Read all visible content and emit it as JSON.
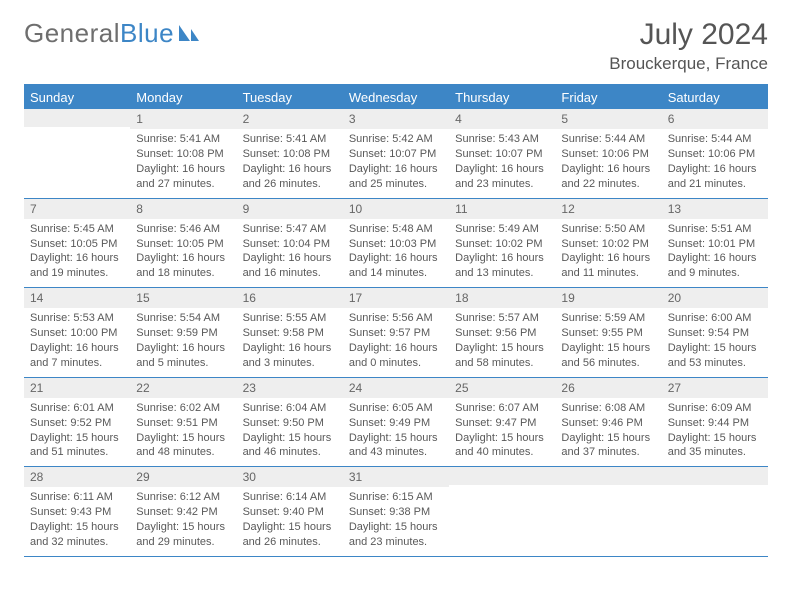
{
  "logo": {
    "text1": "General",
    "text2": "Blue"
  },
  "title": "July 2024",
  "location": "Brouckerque, France",
  "colors": {
    "brand": "#3d86c6",
    "text": "#555555",
    "headerBg": "#3d86c6",
    "headerText": "#ffffff",
    "daynumBg": "#eeeeee",
    "cellText": "#595959"
  },
  "dayNames": [
    "Sunday",
    "Monday",
    "Tuesday",
    "Wednesday",
    "Thursday",
    "Friday",
    "Saturday"
  ],
  "weeks": [
    [
      {
        "day": "",
        "sunrise": "",
        "sunset": "",
        "daylight1": "",
        "daylight2": ""
      },
      {
        "day": "1",
        "sunrise": "Sunrise: 5:41 AM",
        "sunset": "Sunset: 10:08 PM",
        "daylight1": "Daylight: 16 hours",
        "daylight2": "and 27 minutes."
      },
      {
        "day": "2",
        "sunrise": "Sunrise: 5:41 AM",
        "sunset": "Sunset: 10:08 PM",
        "daylight1": "Daylight: 16 hours",
        "daylight2": "and 26 minutes."
      },
      {
        "day": "3",
        "sunrise": "Sunrise: 5:42 AM",
        "sunset": "Sunset: 10:07 PM",
        "daylight1": "Daylight: 16 hours",
        "daylight2": "and 25 minutes."
      },
      {
        "day": "4",
        "sunrise": "Sunrise: 5:43 AM",
        "sunset": "Sunset: 10:07 PM",
        "daylight1": "Daylight: 16 hours",
        "daylight2": "and 23 minutes."
      },
      {
        "day": "5",
        "sunrise": "Sunrise: 5:44 AM",
        "sunset": "Sunset: 10:06 PM",
        "daylight1": "Daylight: 16 hours",
        "daylight2": "and 22 minutes."
      },
      {
        "day": "6",
        "sunrise": "Sunrise: 5:44 AM",
        "sunset": "Sunset: 10:06 PM",
        "daylight1": "Daylight: 16 hours",
        "daylight2": "and 21 minutes."
      }
    ],
    [
      {
        "day": "7",
        "sunrise": "Sunrise: 5:45 AM",
        "sunset": "Sunset: 10:05 PM",
        "daylight1": "Daylight: 16 hours",
        "daylight2": "and 19 minutes."
      },
      {
        "day": "8",
        "sunrise": "Sunrise: 5:46 AM",
        "sunset": "Sunset: 10:05 PM",
        "daylight1": "Daylight: 16 hours",
        "daylight2": "and 18 minutes."
      },
      {
        "day": "9",
        "sunrise": "Sunrise: 5:47 AM",
        "sunset": "Sunset: 10:04 PM",
        "daylight1": "Daylight: 16 hours",
        "daylight2": "and 16 minutes."
      },
      {
        "day": "10",
        "sunrise": "Sunrise: 5:48 AM",
        "sunset": "Sunset: 10:03 PM",
        "daylight1": "Daylight: 16 hours",
        "daylight2": "and 14 minutes."
      },
      {
        "day": "11",
        "sunrise": "Sunrise: 5:49 AM",
        "sunset": "Sunset: 10:02 PM",
        "daylight1": "Daylight: 16 hours",
        "daylight2": "and 13 minutes."
      },
      {
        "day": "12",
        "sunrise": "Sunrise: 5:50 AM",
        "sunset": "Sunset: 10:02 PM",
        "daylight1": "Daylight: 16 hours",
        "daylight2": "and 11 minutes."
      },
      {
        "day": "13",
        "sunrise": "Sunrise: 5:51 AM",
        "sunset": "Sunset: 10:01 PM",
        "daylight1": "Daylight: 16 hours",
        "daylight2": "and 9 minutes."
      }
    ],
    [
      {
        "day": "14",
        "sunrise": "Sunrise: 5:53 AM",
        "sunset": "Sunset: 10:00 PM",
        "daylight1": "Daylight: 16 hours",
        "daylight2": "and 7 minutes."
      },
      {
        "day": "15",
        "sunrise": "Sunrise: 5:54 AM",
        "sunset": "Sunset: 9:59 PM",
        "daylight1": "Daylight: 16 hours",
        "daylight2": "and 5 minutes."
      },
      {
        "day": "16",
        "sunrise": "Sunrise: 5:55 AM",
        "sunset": "Sunset: 9:58 PM",
        "daylight1": "Daylight: 16 hours",
        "daylight2": "and 3 minutes."
      },
      {
        "day": "17",
        "sunrise": "Sunrise: 5:56 AM",
        "sunset": "Sunset: 9:57 PM",
        "daylight1": "Daylight: 16 hours",
        "daylight2": "and 0 minutes."
      },
      {
        "day": "18",
        "sunrise": "Sunrise: 5:57 AM",
        "sunset": "Sunset: 9:56 PM",
        "daylight1": "Daylight: 15 hours",
        "daylight2": "and 58 minutes."
      },
      {
        "day": "19",
        "sunrise": "Sunrise: 5:59 AM",
        "sunset": "Sunset: 9:55 PM",
        "daylight1": "Daylight: 15 hours",
        "daylight2": "and 56 minutes."
      },
      {
        "day": "20",
        "sunrise": "Sunrise: 6:00 AM",
        "sunset": "Sunset: 9:54 PM",
        "daylight1": "Daylight: 15 hours",
        "daylight2": "and 53 minutes."
      }
    ],
    [
      {
        "day": "21",
        "sunrise": "Sunrise: 6:01 AM",
        "sunset": "Sunset: 9:52 PM",
        "daylight1": "Daylight: 15 hours",
        "daylight2": "and 51 minutes."
      },
      {
        "day": "22",
        "sunrise": "Sunrise: 6:02 AM",
        "sunset": "Sunset: 9:51 PM",
        "daylight1": "Daylight: 15 hours",
        "daylight2": "and 48 minutes."
      },
      {
        "day": "23",
        "sunrise": "Sunrise: 6:04 AM",
        "sunset": "Sunset: 9:50 PM",
        "daylight1": "Daylight: 15 hours",
        "daylight2": "and 46 minutes."
      },
      {
        "day": "24",
        "sunrise": "Sunrise: 6:05 AM",
        "sunset": "Sunset: 9:49 PM",
        "daylight1": "Daylight: 15 hours",
        "daylight2": "and 43 minutes."
      },
      {
        "day": "25",
        "sunrise": "Sunrise: 6:07 AM",
        "sunset": "Sunset: 9:47 PM",
        "daylight1": "Daylight: 15 hours",
        "daylight2": "and 40 minutes."
      },
      {
        "day": "26",
        "sunrise": "Sunrise: 6:08 AM",
        "sunset": "Sunset: 9:46 PM",
        "daylight1": "Daylight: 15 hours",
        "daylight2": "and 37 minutes."
      },
      {
        "day": "27",
        "sunrise": "Sunrise: 6:09 AM",
        "sunset": "Sunset: 9:44 PM",
        "daylight1": "Daylight: 15 hours",
        "daylight2": "and 35 minutes."
      }
    ],
    [
      {
        "day": "28",
        "sunrise": "Sunrise: 6:11 AM",
        "sunset": "Sunset: 9:43 PM",
        "daylight1": "Daylight: 15 hours",
        "daylight2": "and 32 minutes."
      },
      {
        "day": "29",
        "sunrise": "Sunrise: 6:12 AM",
        "sunset": "Sunset: 9:42 PM",
        "daylight1": "Daylight: 15 hours",
        "daylight2": "and 29 minutes."
      },
      {
        "day": "30",
        "sunrise": "Sunrise: 6:14 AM",
        "sunset": "Sunset: 9:40 PM",
        "daylight1": "Daylight: 15 hours",
        "daylight2": "and 26 minutes."
      },
      {
        "day": "31",
        "sunrise": "Sunrise: 6:15 AM",
        "sunset": "Sunset: 9:38 PM",
        "daylight1": "Daylight: 15 hours",
        "daylight2": "and 23 minutes."
      },
      {
        "day": "",
        "sunrise": "",
        "sunset": "",
        "daylight1": "",
        "daylight2": ""
      },
      {
        "day": "",
        "sunrise": "",
        "sunset": "",
        "daylight1": "",
        "daylight2": ""
      },
      {
        "day": "",
        "sunrise": "",
        "sunset": "",
        "daylight1": "",
        "daylight2": ""
      }
    ]
  ]
}
